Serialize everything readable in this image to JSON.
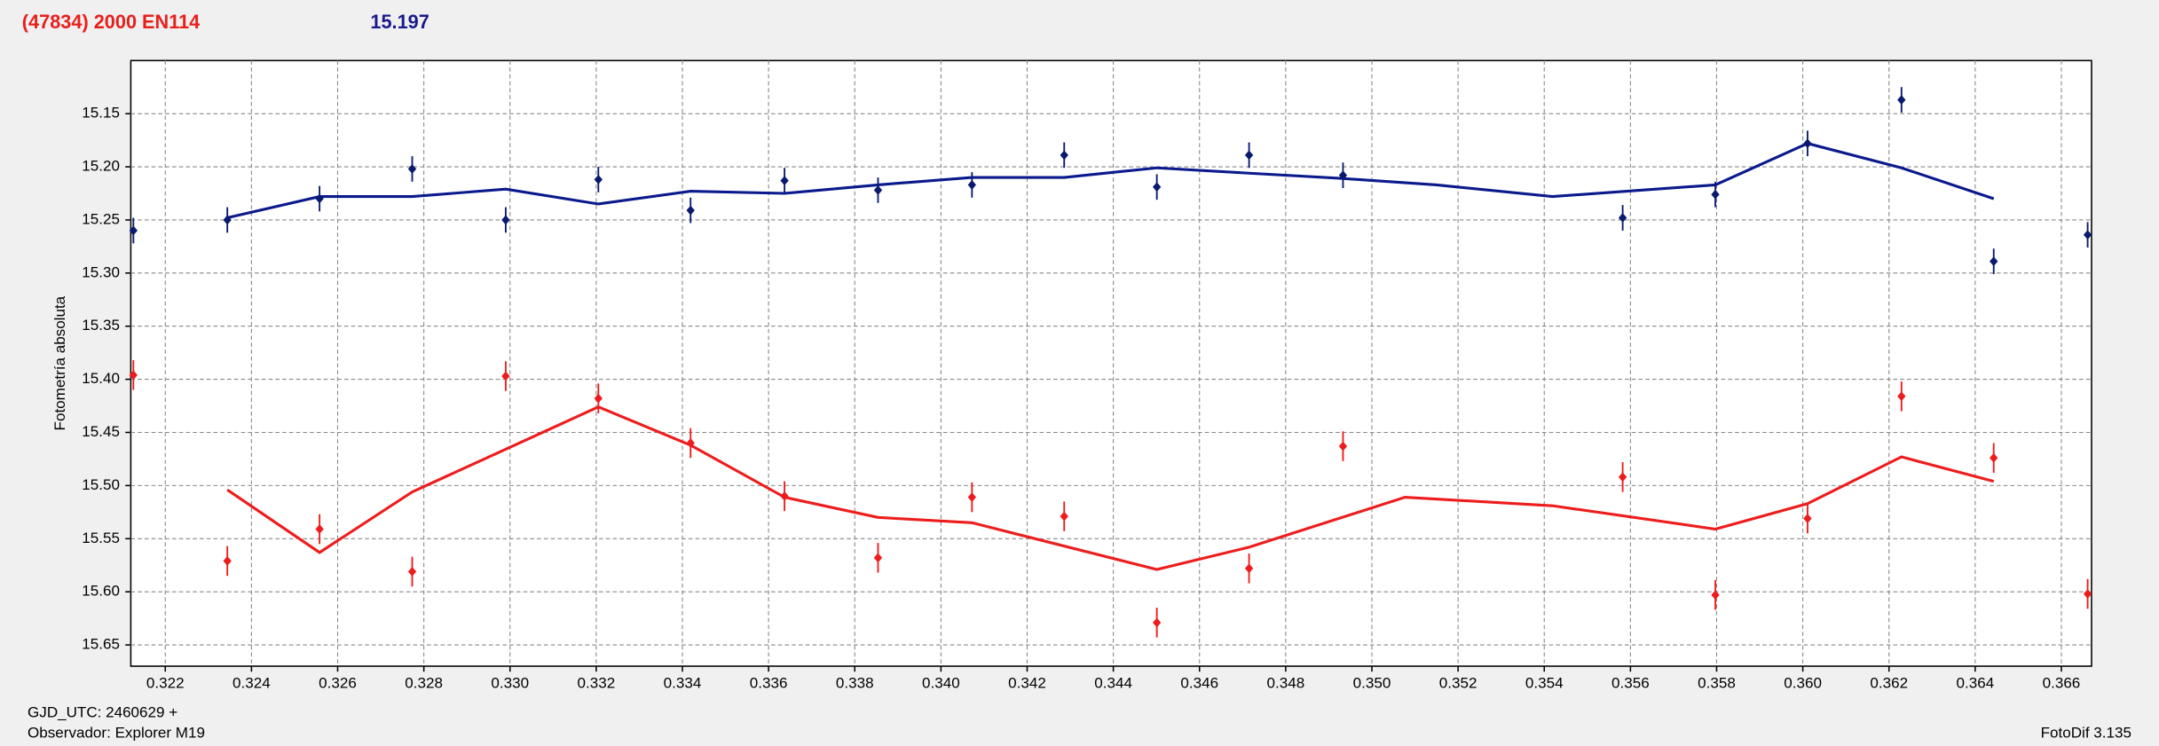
{
  "chart_data": {
    "type": "scatter",
    "title": "(47834) 2000 EN114",
    "title_color": "#e8201c",
    "subtitle": "15.197",
    "subtitle_color": "#1a1a8c",
    "ylabel": "Fotometría absoluta",
    "notes": [
      "GJD_UTC: 2460629 +",
      "Observador: Explorer M19",
      "FotoDif 3.135"
    ],
    "xlim": [
      0.3212,
      0.3667
    ],
    "ylim": [
      15.1,
      15.67
    ],
    "y_inverted": true,
    "grid": true,
    "xticks": [
      0.322,
      0.324,
      0.326,
      0.328,
      {
        "value": 0.33,
        "label": "0.330"
      },
      0.332,
      0.334,
      0.336,
      0.338,
      {
        "value": 0.34,
        "label": "0.340"
      },
      0.342,
      0.344,
      0.346,
      0.348,
      {
        "value": 0.35,
        "label": "0.350"
      },
      0.352,
      0.354,
      0.356,
      0.358,
      {
        "value": 0.36,
        "label": "0.360"
      },
      0.362,
      0.364,
      0.366
    ],
    "yticks": [
      15.15,
      {
        "value": 15.2,
        "label": "15.20"
      },
      15.25,
      {
        "value": 15.3,
        "label": "15.30"
      },
      15.35,
      {
        "value": 15.4,
        "label": "15.40"
      },
      15.45,
      {
        "value": 15.5,
        "label": "15.50"
      },
      15.55,
      {
        "value": 15.6,
        "label": "15.60"
      },
      15.65
    ],
    "series": [
      {
        "color": "#0a1a6e",
        "x": [
          0.32126,
          0.32344,
          0.32558,
          0.32773,
          0.3299,
          0.33205,
          0.33419,
          0.33637,
          0.33854,
          0.34072,
          0.34286,
          0.34501,
          0.34715,
          0.34933,
          0.35582,
          0.35797,
          0.36011,
          0.36229,
          0.36443,
          0.36661
        ],
        "values": [
          15.26,
          15.25,
          15.23,
          15.202,
          15.25,
          15.212,
          15.241,
          15.213,
          15.222,
          15.217,
          15.189,
          15.219,
          15.189,
          15.208,
          15.248,
          15.226,
          15.178,
          15.137,
          15.289,
          15.264
        ],
        "errors": [
          0.012,
          0.012,
          0.012,
          0.012,
          0.012,
          0.012,
          0.012,
          0.012,
          0.012,
          0.012,
          0.012,
          0.012,
          0.012,
          0.012,
          0.012,
          0.012,
          0.012,
          0.012,
          0.012,
          0.012
        ]
      },
      {
        "color": "#ee1c1c",
        "x": [
          0.32126,
          0.32344,
          0.32558,
          0.32773,
          0.3299,
          0.33205,
          0.33419,
          0.33637,
          0.33854,
          0.34072,
          0.34286,
          0.34501,
          0.34715,
          0.34933,
          0.35582,
          0.35797,
          0.36011,
          0.36229,
          0.36443,
          0.36661
        ],
        "values": [
          15.396,
          15.571,
          15.541,
          15.581,
          15.397,
          15.418,
          15.46,
          15.51,
          15.568,
          15.511,
          15.529,
          15.629,
          15.578,
          15.463,
          15.492,
          15.603,
          15.531,
          15.416,
          15.474,
          15.602
        ],
        "errors": [
          0.014,
          0.014,
          0.014,
          0.014,
          0.014,
          0.014,
          0.014,
          0.014,
          0.014,
          0.014,
          0.014,
          0.014,
          0.014,
          0.014,
          0.014,
          0.014,
          0.014,
          0.014,
          0.014,
          0.014
        ]
      }
    ],
    "fits": [
      {
        "color": "#0a1a8c",
        "x": [
          0.32344,
          0.32558,
          0.32773,
          0.3299,
          0.33205,
          0.33419,
          0.33637,
          0.33854,
          0.34072,
          0.34286,
          0.34501,
          0.34715,
          0.34933,
          0.3515,
          0.35419,
          0.35797,
          0.36011,
          0.36229,
          0.36443
        ],
        "values": [
          15.248,
          15.228,
          15.228,
          15.221,
          15.235,
          15.223,
          15.225,
          15.217,
          15.21,
          15.21,
          15.201,
          15.206,
          15.211,
          15.217,
          15.228,
          15.217,
          15.178,
          15.201,
          15.23
        ]
      },
      {
        "color": "#ee1c1c",
        "x": [
          0.32344,
          0.32558,
          0.32773,
          0.33205,
          0.33419,
          0.33637,
          0.33854,
          0.34072,
          0.34501,
          0.34715,
          0.35077,
          0.35419,
          0.35797,
          0.36011,
          0.36229,
          0.36443
        ],
        "values": [
          15.504,
          15.563,
          15.506,
          15.426,
          15.462,
          15.511,
          15.53,
          15.535,
          15.579,
          15.558,
          15.511,
          15.519,
          15.541,
          15.517,
          15.473,
          15.496
        ]
      }
    ]
  }
}
